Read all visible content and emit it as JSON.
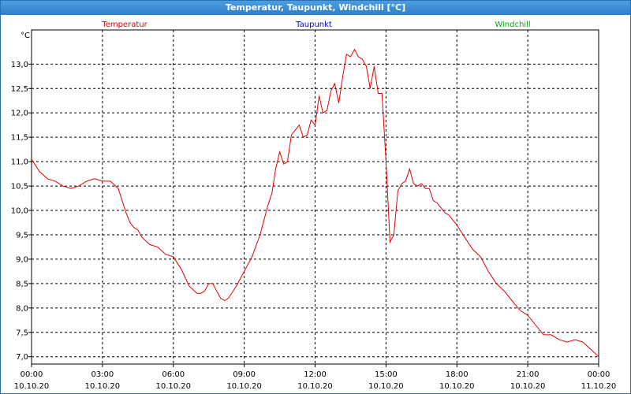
{
  "window": {
    "title": "Temperatur, Taupunkt, Windchill [°C]"
  },
  "colors": {
    "title_bar": "#2f7fc8",
    "temperatur": "#e00000",
    "taupunkt": "#0000cc",
    "windchill": "#00aa00",
    "grid": "#000000"
  },
  "chart_data": {
    "type": "line",
    "title": "Temperatur, Taupunkt, Windchill [°C]",
    "unit_label": "°C",
    "grid": true,
    "legend": [
      {
        "name": "Temperatur",
        "color": "#e00000"
      },
      {
        "name": "Taupunkt",
        "color": "#0000cc"
      },
      {
        "name": "Windchill",
        "color": "#00aa00"
      }
    ],
    "xlim_hours": [
      0,
      24
    ],
    "ylim": [
      6.85,
      13.7
    ],
    "y_ticks": [
      "7,0",
      "7,5",
      "8,0",
      "8,5",
      "9,0",
      "9,5",
      "10,0",
      "10,5",
      "11,0",
      "11,5",
      "12,0",
      "12,5",
      "13,0"
    ],
    "x_ticks": [
      {
        "time": "00:00",
        "date": "10.10.20"
      },
      {
        "time": "03:00",
        "date": "10.10.20"
      },
      {
        "time": "06:00",
        "date": "10.10.20"
      },
      {
        "time": "09:00",
        "date": "10.10.20"
      },
      {
        "time": "12:00",
        "date": "10.10.20"
      },
      {
        "time": "15:00",
        "date": "10.10.20"
      },
      {
        "time": "18:00",
        "date": "10.10.20"
      },
      {
        "time": "21:00",
        "date": "10.10.20"
      },
      {
        "time": "00:00",
        "date": "11.10.20"
      }
    ],
    "series": [
      {
        "name": "Temperatur",
        "x_hours": [
          0,
          0.33,
          0.67,
          1.0,
          1.33,
          1.67,
          2.0,
          2.33,
          2.67,
          3.0,
          3.33,
          3.67,
          4.0,
          4.17,
          4.33,
          4.5,
          4.67,
          5.0,
          5.33,
          5.67,
          6.0,
          6.33,
          6.67,
          7.0,
          7.17,
          7.33,
          7.5,
          7.67,
          7.83,
          8.0,
          8.17,
          8.33,
          8.67,
          9.0,
          9.33,
          9.67,
          10.0,
          10.17,
          10.33,
          10.5,
          10.67,
          10.83,
          11.0,
          11.33,
          11.5,
          11.67,
          11.83,
          12.0,
          12.17,
          12.33,
          12.5,
          12.67,
          12.83,
          13.0,
          13.17,
          13.33,
          13.5,
          13.67,
          13.83,
          14.0,
          14.17,
          14.33,
          14.5,
          14.67,
          14.83,
          15.0,
          15.17,
          15.33,
          15.5,
          15.67,
          15.83,
          16.0,
          16.17,
          16.33,
          16.5,
          16.67,
          16.83,
          17.0,
          17.17,
          17.33,
          17.5,
          17.67,
          17.83,
          18.0,
          18.33,
          18.67,
          19.0,
          19.33,
          19.67,
          20.0,
          20.33,
          20.67,
          21.0,
          21.33,
          21.67,
          22.0,
          22.33,
          22.67,
          23.0,
          23.33,
          23.67,
          24.0
        ],
        "values": [
          11.05,
          10.8,
          10.65,
          10.6,
          10.5,
          10.45,
          10.5,
          10.6,
          10.65,
          10.6,
          10.6,
          10.45,
          9.95,
          9.75,
          9.65,
          9.6,
          9.45,
          9.3,
          9.25,
          9.1,
          9.05,
          8.8,
          8.45,
          8.3,
          8.3,
          8.35,
          8.5,
          8.5,
          8.35,
          8.2,
          8.15,
          8.2,
          8.45,
          8.75,
          9.05,
          9.5,
          10.1,
          10.35,
          10.85,
          11.2,
          10.95,
          11.0,
          11.55,
          11.75,
          11.5,
          11.55,
          11.85,
          11.75,
          12.35,
          12.0,
          12.05,
          12.45,
          12.6,
          12.2,
          12.75,
          13.2,
          13.15,
          13.3,
          13.15,
          13.1,
          12.95,
          12.5,
          12.95,
          12.4,
          12.4,
          11.0,
          9.35,
          9.5,
          10.4,
          10.55,
          10.6,
          10.85,
          10.55,
          10.5,
          10.55,
          10.45,
          10.45,
          10.2,
          10.15,
          10.05,
          9.95,
          9.9,
          9.8,
          9.7,
          9.45,
          9.2,
          9.05,
          8.75,
          8.5,
          8.35,
          8.15,
          7.95,
          7.85,
          7.65,
          7.45,
          7.45,
          7.35,
          7.3,
          7.35,
          7.3,
          7.15,
          7.0
        ]
      },
      {
        "name": "Taupunkt",
        "x_hours": [],
        "values": []
      },
      {
        "name": "Windchill",
        "x_hours": [],
        "values": []
      }
    ]
  }
}
